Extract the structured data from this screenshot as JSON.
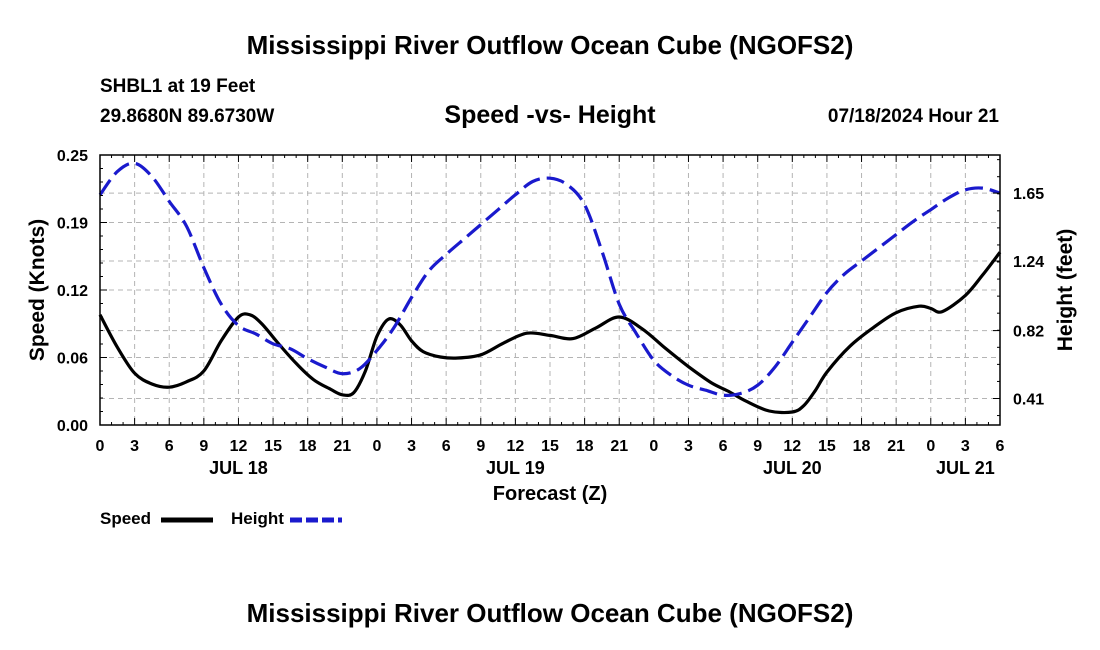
{
  "header": {
    "title": "Mississippi River Outflow Ocean Cube (NGOFS2)",
    "station": "SHBL1 at 19 Feet",
    "location": "29.8680N  89.6730W",
    "subtitle": "Speed -vs- Height",
    "datetime": "07/18/2024 Hour 21"
  },
  "footer": {
    "title": "Mississippi River Outflow Ocean Cube (NGOFS2)"
  },
  "chart_data": {
    "type": "line",
    "xlabel": "Forecast (Z)",
    "ylabel": "Speed (Knots)",
    "ylabel_right": "Height (feet)",
    "x_unit": "forecast hours from 00Z JUL 18",
    "xlim": [
      0,
      78
    ],
    "ylim": [
      0,
      0.25
    ],
    "ylim_right": [
      0.25,
      1.88
    ],
    "grid": true,
    "x_ticks": [
      0,
      3,
      6,
      9,
      12,
      15,
      18,
      21,
      24,
      27,
      30,
      33,
      36,
      39,
      42,
      45,
      48,
      51,
      54,
      57,
      60,
      63,
      66,
      69,
      72,
      75,
      78
    ],
    "x_tick_labels": [
      "0",
      "3",
      "6",
      "9",
      "12",
      "15",
      "18",
      "21",
      "0",
      "3",
      "6",
      "9",
      "12",
      "15",
      "18",
      "21",
      "0",
      "3",
      "6",
      "9",
      "12",
      "15",
      "18",
      "21",
      "0",
      "3",
      "6"
    ],
    "y_ticks": [
      0,
      0.0625,
      0.125,
      0.1875,
      0.25
    ],
    "y_tick_labels": [
      "0.00",
      "0.06",
      "0.12",
      "0.19",
      "0.25"
    ],
    "y_ticks_right": [
      0.41,
      0.82,
      1.24,
      1.65
    ],
    "y_tick_labels_right": [
      "0.41",
      "0.82",
      "1.24",
      "1.65"
    ],
    "date_labels": [
      {
        "hour": 12,
        "label": "JUL 18"
      },
      {
        "hour": 36,
        "label": "JUL 19"
      },
      {
        "hour": 60,
        "label": "JUL 20"
      },
      {
        "hour": 75,
        "label": "JUL 21"
      }
    ],
    "series": [
      {
        "name": "Speed",
        "axis": "left",
        "color": "#000000",
        "style": "solid",
        "x": [
          0,
          1.5,
          3,
          4.5,
          6,
          7.5,
          9,
          10.5,
          12,
          13,
          14,
          15.5,
          17,
          18.5,
          20,
          21,
          22,
          23,
          24,
          25,
          26,
          27,
          28,
          29.5,
          31,
          33,
          35,
          37,
          39,
          41,
          43,
          45,
          47,
          49,
          51,
          53,
          54.5,
          56,
          58,
          60,
          61,
          62,
          63,
          65,
          67,
          69,
          71,
          72,
          73,
          75,
          76.5,
          78
        ],
        "y": [
          0.102,
          0.072,
          0.048,
          0.038,
          0.035,
          0.04,
          0.05,
          0.078,
          0.1,
          0.102,
          0.094,
          0.075,
          0.057,
          0.042,
          0.033,
          0.028,
          0.03,
          0.05,
          0.082,
          0.098,
          0.093,
          0.078,
          0.068,
          0.063,
          0.062,
          0.065,
          0.076,
          0.085,
          0.083,
          0.08,
          0.09,
          0.1,
          0.089,
          0.071,
          0.054,
          0.039,
          0.031,
          0.022,
          0.013,
          0.012,
          0.018,
          0.032,
          0.049,
          0.073,
          0.09,
          0.104,
          0.11,
          0.108,
          0.105,
          0.12,
          0.139,
          0.16
        ]
      },
      {
        "name": "Height",
        "axis": "right",
        "color": "#1a1acd",
        "style": "dashed",
        "x": [
          0,
          1.5,
          3,
          4.5,
          6,
          7.5,
          9,
          10.5,
          12,
          13.5,
          15,
          16.5,
          18,
          19.5,
          21,
          22.5,
          24,
          25.5,
          27,
          28.5,
          30,
          31.5,
          33,
          34.5,
          36,
          37.5,
          39,
          40.5,
          42,
          43.5,
          45,
          46.5,
          48,
          49.5,
          51,
          52.5,
          54,
          55.5,
          57,
          58.5,
          60,
          61.5,
          63,
          64.5,
          66,
          67.5,
          69,
          70.5,
          72,
          73.5,
          75,
          76.5,
          78
        ],
        "y": [
          1.64,
          1.78,
          1.83,
          1.75,
          1.6,
          1.45,
          1.2,
          0.98,
          0.85,
          0.8,
          0.74,
          0.71,
          0.65,
          0.6,
          0.56,
          0.59,
          0.7,
          0.84,
          1.02,
          1.18,
          1.28,
          1.37,
          1.46,
          1.55,
          1.64,
          1.72,
          1.74,
          1.7,
          1.58,
          1.3,
          0.98,
          0.8,
          0.64,
          0.55,
          0.49,
          0.46,
          0.43,
          0.44,
          0.49,
          0.6,
          0.75,
          0.9,
          1.05,
          1.16,
          1.24,
          1.32,
          1.4,
          1.48,
          1.55,
          1.62,
          1.67,
          1.68,
          1.65
        ]
      }
    ]
  },
  "legend": {
    "speed_label": "Speed",
    "height_label": "Height"
  }
}
